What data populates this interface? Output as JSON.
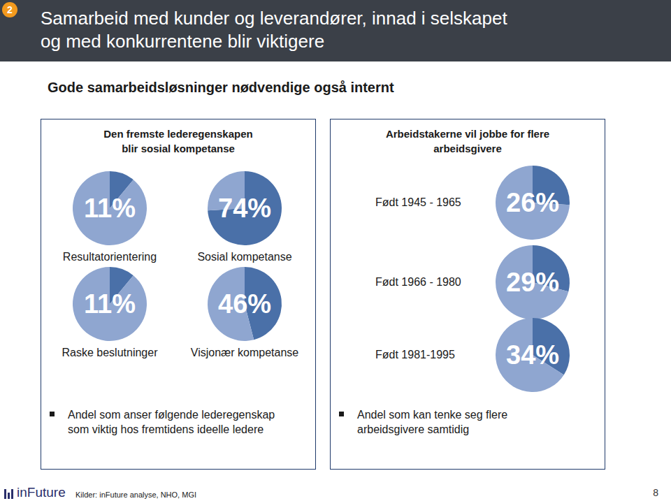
{
  "header": {
    "number": "2",
    "title": [
      "Samarbeid med kunder og leverandører, innad i selskapet",
      "og med konkurrentene blir viktigere"
    ]
  },
  "subtitle": "Gode samarbeidsløsninger nødvendige også internt",
  "panels": [
    {
      "heading": [
        "Den fremste lederegenskapen",
        "blir sosial kompetanse"
      ],
      "note": [
        "Andel som anser følgende lederegenskap",
        "som viktig hos fremtidens ideelle ledere"
      ]
    },
    {
      "heading": [
        "Arbeidstakerne vil jobbe for flere",
        "arbeidsgivere"
      ],
      "note": [
        "Andel som kan tenke seg flere",
        "arbeidsgivere samtidig"
      ]
    }
  ],
  "chart_data": [
    {
      "type": "pie",
      "title": "Resultatorientering",
      "values": [
        11,
        89
      ],
      "value_labels": [
        "11%",
        null
      ],
      "colors": [
        "#4a70a8",
        "#8fa6d0"
      ]
    },
    {
      "type": "pie",
      "title": "Sosial kompetanse",
      "values": [
        74,
        26
      ],
      "value_labels": [
        "74%",
        null
      ],
      "colors": [
        "#4a70a8",
        "#8fa6d0"
      ]
    },
    {
      "type": "pie",
      "title": "Raske beslutninger",
      "values": [
        11,
        89
      ],
      "value_labels": [
        "11%",
        null
      ],
      "colors": [
        "#4a70a8",
        "#8fa6d0"
      ]
    },
    {
      "type": "pie",
      "title": "Visjonær kompetanse",
      "values": [
        46,
        54
      ],
      "value_labels": [
        "46%",
        null
      ],
      "colors": [
        "#4a70a8",
        "#8fa6d0"
      ]
    },
    {
      "type": "pie",
      "title": "Født 1945 - 1965",
      "values": [
        26,
        74
      ],
      "value_labels": [
        "26%",
        null
      ],
      "colors": [
        "#4a70a8",
        "#8fa6d0"
      ]
    },
    {
      "type": "pie",
      "title": "Født 1966 - 1980",
      "values": [
        29,
        71
      ],
      "value_labels": [
        "29%",
        null
      ],
      "colors": [
        "#4a70a8",
        "#8fa6d0"
      ]
    },
    {
      "type": "pie",
      "title": "Født 1981-1995",
      "values": [
        34,
        66
      ],
      "value_labels": [
        "34%",
        null
      ],
      "colors": [
        "#4a70a8",
        "#8fa6d0"
      ]
    }
  ],
  "footer": {
    "logo": "inFuture",
    "source": "Kilder: inFuture analyse, NHO, MGI",
    "page": "8"
  }
}
